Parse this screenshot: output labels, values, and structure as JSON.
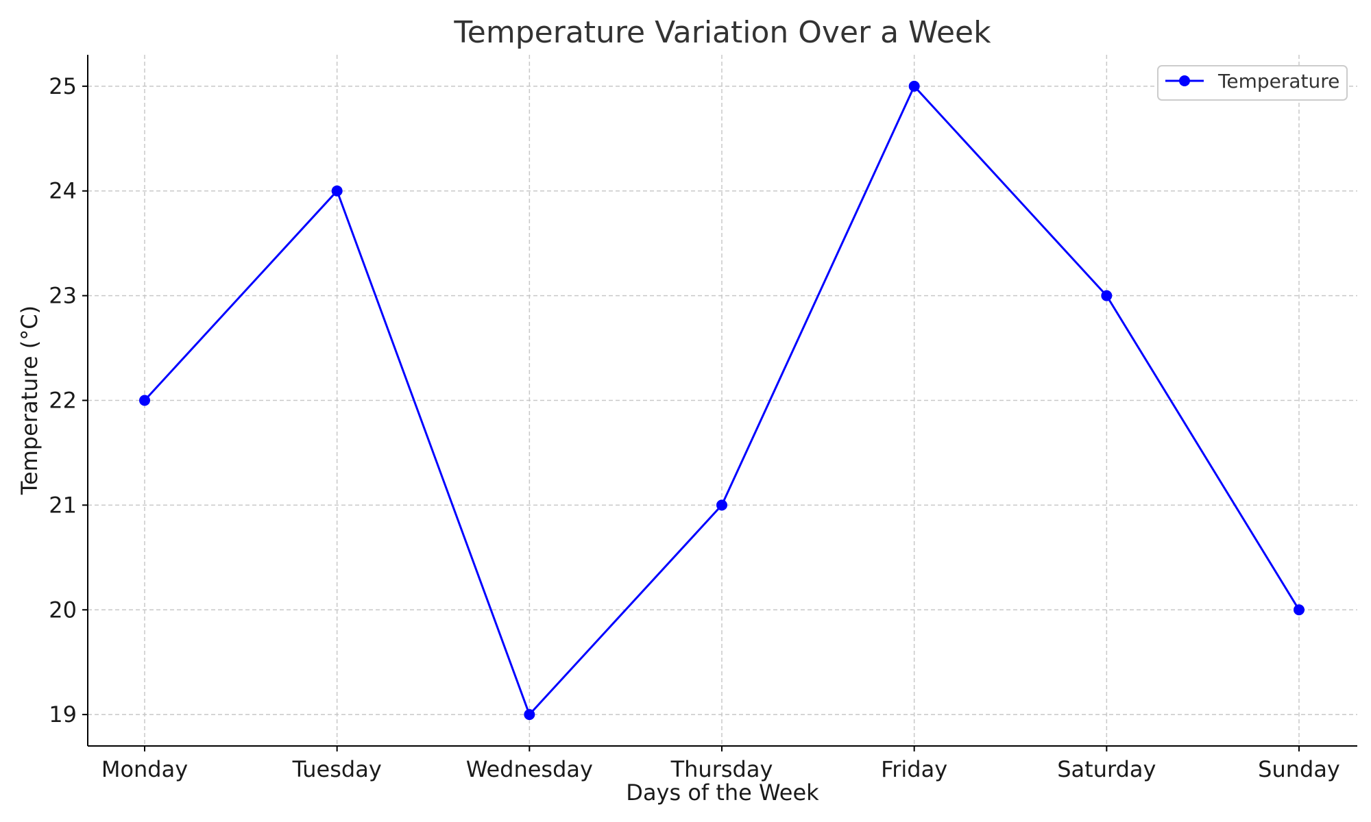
{
  "chart_data": {
    "type": "line",
    "title": "Temperature Variation Over a Week",
    "xlabel": "Days of the Week",
    "ylabel": "Temperature (°C)",
    "categories": [
      "Monday",
      "Tuesday",
      "Wednesday",
      "Thursday",
      "Friday",
      "Saturday",
      "Sunday"
    ],
    "series": [
      {
        "name": "Temperature",
        "values": [
          22,
          24,
          19,
          21,
          25,
          23,
          20
        ],
        "color": "#0000ff",
        "marker": "circle"
      }
    ],
    "ylim": [
      18.7,
      25.3
    ],
    "yticks": [
      "19",
      "20",
      "21",
      "22",
      "23",
      "24",
      "25"
    ],
    "grid": true,
    "grid_style": "dashed",
    "legend_position": "top-right"
  }
}
